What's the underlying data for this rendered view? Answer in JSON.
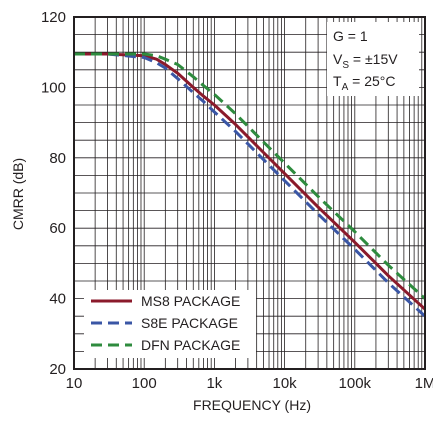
{
  "chart_data": {
    "type": "line",
    "xlabel": "FREQUENCY (Hz)",
    "ylabel": "CMRR (dB)",
    "x_scale": "log",
    "xlim": [
      10,
      1000000
    ],
    "ylim": [
      20,
      120
    ],
    "x_ticks": [
      10,
      100,
      1000,
      10000,
      100000,
      1000000
    ],
    "x_tick_labels": [
      "10",
      "100",
      "1k",
      "10k",
      "100k",
      "1M"
    ],
    "y_ticks": [
      20,
      40,
      60,
      80,
      100,
      120
    ],
    "y_tick_labels": [
      "20",
      "40",
      "60",
      "80",
      "100",
      "120"
    ],
    "grid": true,
    "legend_position": "bottom-left",
    "conditions": {
      "line1": "G = 1",
      "line2_main": "V",
      "line2_sub": "S",
      "line2_rest": " = ±15V",
      "line3_main": "T",
      "line3_sub": "A",
      "line3_rest": " = 25°C"
    },
    "series": [
      {
        "name": "MS8 PACKAGE",
        "color": "#8b1a2b",
        "style": "solid",
        "x": [
          10,
          30,
          100,
          150,
          200,
          300,
          500,
          700,
          1000,
          2000,
          5000,
          10000,
          30000,
          100000,
          300000,
          1000000
        ],
        "y": [
          109.5,
          109.5,
          109,
          108,
          106.5,
          104,
          100,
          97.5,
          95,
          89.5,
          81.5,
          75.5,
          66,
          56,
          46.5,
          37
        ]
      },
      {
        "name": "S8E PACKAGE",
        "color": "#3a56a5",
        "style": "dashed",
        "x": [
          10,
          30,
          100,
          150,
          200,
          300,
          500,
          700,
          1000,
          2000,
          5000,
          10000,
          30000,
          100000,
          300000,
          1000000
        ],
        "y": [
          109.5,
          109.5,
          108.5,
          107,
          105.5,
          102.5,
          98.5,
          96,
          93,
          87.5,
          79.5,
          73.5,
          64,
          54,
          44.5,
          35
        ]
      },
      {
        "name": "DFN PACKAGE",
        "color": "#2e8b3e",
        "style": "dashed",
        "x": [
          10,
          30,
          100,
          150,
          200,
          300,
          500,
          700,
          1000,
          2000,
          5000,
          10000,
          30000,
          100000,
          300000,
          1000000
        ],
        "y": [
          109.5,
          109.5,
          109.5,
          109,
          108,
          106.5,
          103,
          100.5,
          98,
          92.5,
          84.5,
          78.5,
          69,
          59,
          49.5,
          40
        ]
      }
    ]
  }
}
